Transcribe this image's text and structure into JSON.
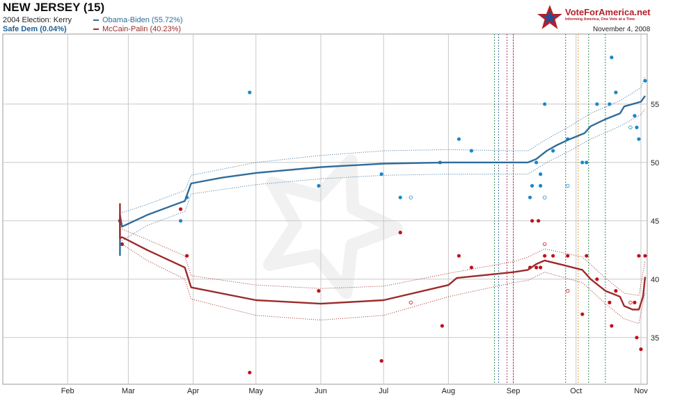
{
  "header": {
    "title": "NEW JERSEY (15)",
    "election_2004": "2004 Election: Kerry",
    "rating": "Safe Dem (0.04%)",
    "date": "November 4, 2008"
  },
  "logo": {
    "name": "VoteForAmerica.net",
    "tagline": "Informing America, One Vote at a Time"
  },
  "colors": {
    "obama": "#2f6c9b",
    "obama_points": "#1a88c9",
    "mccain": "#9c2a2a",
    "mccain_points": "#c0111b",
    "grid": "#c8c8c8"
  },
  "chart_data": {
    "type": "line",
    "x_axis": {
      "min": "2008-01-01",
      "max": "2008-11-04",
      "ticks": [
        "Feb",
        "Mar",
        "Apr",
        "May",
        "Jun",
        "Jul",
        "Aug",
        "Sep",
        "Oct",
        "Nov"
      ],
      "tick_dates": [
        "2008-02-01",
        "2008-03-01",
        "2008-04-01",
        "2008-05-01",
        "2008-06-01",
        "2008-07-01",
        "2008-08-01",
        "2008-09-01",
        "2008-10-01",
        "2008-11-01"
      ]
    },
    "y_axis": {
      "min": 31,
      "max": 61,
      "ticks": [
        35,
        40,
        45,
        50,
        55
      ],
      "position": "right"
    },
    "grid": true,
    "legend": "top-left",
    "series": [
      {
        "name": "Obama-Biden (55.72%)",
        "trend": [
          [
            "2008-02-26",
            42
          ],
          [
            "2008-02-26",
            45.5
          ],
          [
            "2008-02-27",
            44.5
          ],
          [
            "2008-03-10",
            45.5
          ],
          [
            "2008-03-28",
            46.7
          ],
          [
            "2008-03-31",
            48.2
          ],
          [
            "2008-04-15",
            48.7
          ],
          [
            "2008-05-01",
            49.1
          ],
          [
            "2008-06-01",
            49.6
          ],
          [
            "2008-07-01",
            49.9
          ],
          [
            "2008-08-01",
            50.0
          ],
          [
            "2008-08-15",
            50.0
          ],
          [
            "2008-09-01",
            50.0
          ],
          [
            "2008-09-08",
            50.0
          ],
          [
            "2008-09-12",
            50.3
          ],
          [
            "2008-09-17",
            51.0
          ],
          [
            "2008-09-22",
            51.5
          ],
          [
            "2008-09-28",
            52.0
          ],
          [
            "2008-10-05",
            52.5
          ],
          [
            "2008-10-08",
            53.1
          ],
          [
            "2008-10-15",
            53.7
          ],
          [
            "2008-10-22",
            54.2
          ],
          [
            "2008-10-24",
            54.8
          ],
          [
            "2008-10-28",
            55.0
          ],
          [
            "2008-11-01",
            55.2
          ],
          [
            "2008-11-03",
            55.7
          ]
        ],
        "band_upper": [
          [
            "2008-02-27",
            45.7
          ],
          [
            "2008-03-10",
            46.4
          ],
          [
            "2008-03-28",
            47.6
          ],
          [
            "2008-03-31",
            48.9
          ],
          [
            "2008-05-01",
            50.0
          ],
          [
            "2008-06-01",
            50.6
          ],
          [
            "2008-07-01",
            51.0
          ],
          [
            "2008-08-01",
            51.1
          ],
          [
            "2008-09-01",
            51.0
          ],
          [
            "2008-09-08",
            51.0
          ],
          [
            "2008-09-17",
            52.0
          ],
          [
            "2008-09-28",
            53.1
          ],
          [
            "2008-10-08",
            54.2
          ],
          [
            "2008-10-22",
            55.3
          ],
          [
            "2008-11-01",
            56.4
          ],
          [
            "2008-11-03",
            57.4
          ]
        ],
        "band_lower": [
          [
            "2008-02-27",
            43.3
          ],
          [
            "2008-03-10",
            44.6
          ],
          [
            "2008-03-28",
            45.8
          ],
          [
            "2008-03-31",
            47.3
          ],
          [
            "2008-05-01",
            48.1
          ],
          [
            "2008-06-01",
            48.6
          ],
          [
            "2008-07-01",
            48.9
          ],
          [
            "2008-08-01",
            49.0
          ],
          [
            "2008-09-01",
            49.0
          ],
          [
            "2008-09-08",
            49.0
          ],
          [
            "2008-09-17",
            50.0
          ],
          [
            "2008-09-28",
            51.0
          ],
          [
            "2008-10-08",
            52.0
          ],
          [
            "2008-10-22",
            53.1
          ],
          [
            "2008-11-01",
            54.1
          ],
          [
            "2008-11-03",
            54.6
          ]
        ],
        "polls": [
          [
            "2008-02-27",
            43
          ],
          [
            "2008-03-26",
            45
          ],
          [
            "2008-03-29",
            47
          ],
          [
            "2008-04-28",
            56
          ],
          [
            "2008-05-31",
            48
          ],
          [
            "2008-06-30",
            49
          ],
          [
            "2008-07-09",
            47
          ],
          [
            "2008-07-28",
            50
          ],
          [
            "2008-08-06",
            52
          ],
          [
            "2008-08-12",
            51
          ],
          [
            "2008-09-09",
            47
          ],
          [
            "2008-09-10",
            48
          ],
          [
            "2008-09-12",
            50
          ],
          [
            "2008-09-14",
            48
          ],
          [
            "2008-09-14",
            49
          ],
          [
            "2008-09-16",
            55
          ],
          [
            "2008-09-20",
            51
          ],
          [
            "2008-09-27",
            52
          ],
          [
            "2008-10-04",
            50
          ],
          [
            "2008-10-06",
            50
          ],
          [
            "2008-10-11",
            55
          ],
          [
            "2008-10-17",
            55
          ],
          [
            "2008-10-18",
            59
          ],
          [
            "2008-10-20",
            56
          ],
          [
            "2008-10-29",
            54
          ],
          [
            "2008-10-30",
            53
          ],
          [
            "2008-10-31",
            52
          ],
          [
            "2008-11-03",
            57
          ]
        ],
        "polls_open": [
          [
            "2008-07-14",
            47
          ],
          [
            "2008-09-16",
            47
          ],
          [
            "2008-09-27",
            48
          ],
          [
            "2008-10-27",
            53
          ]
        ]
      },
      {
        "name": "McCain-Palin (40.23%)",
        "trend": [
          [
            "2008-02-26",
            46.5
          ],
          [
            "2008-02-26",
            43.5
          ],
          [
            "2008-02-27",
            43.6
          ],
          [
            "2008-03-10",
            42.5
          ],
          [
            "2008-03-28",
            41.0
          ],
          [
            "2008-03-31",
            39.3
          ],
          [
            "2008-05-01",
            38.2
          ],
          [
            "2008-06-01",
            37.9
          ],
          [
            "2008-07-01",
            38.2
          ],
          [
            "2008-08-01",
            39.5
          ],
          [
            "2008-08-05",
            40.1
          ],
          [
            "2008-09-01",
            40.6
          ],
          [
            "2008-09-08",
            40.8
          ],
          [
            "2008-09-12",
            41.3
          ],
          [
            "2008-09-16",
            41.6
          ],
          [
            "2008-09-25",
            41.2
          ],
          [
            "2008-10-04",
            40.8
          ],
          [
            "2008-10-08",
            40.0
          ],
          [
            "2008-10-15",
            39.0
          ],
          [
            "2008-10-22",
            38.5
          ],
          [
            "2008-10-24",
            37.7
          ],
          [
            "2008-10-28",
            37.4
          ],
          [
            "2008-10-31",
            37.4
          ],
          [
            "2008-11-02",
            38.5
          ],
          [
            "2008-11-03",
            40.2
          ]
        ],
        "band_upper": [
          [
            "2008-02-27",
            44.3
          ],
          [
            "2008-03-10",
            43.4
          ],
          [
            "2008-03-28",
            42.0
          ],
          [
            "2008-03-31",
            40.3
          ],
          [
            "2008-05-01",
            39.5
          ],
          [
            "2008-06-01",
            39.2
          ],
          [
            "2008-07-01",
            39.4
          ],
          [
            "2008-08-01",
            40.5
          ],
          [
            "2008-09-01",
            41.5
          ],
          [
            "2008-09-08",
            41.9
          ],
          [
            "2008-09-16",
            42.6
          ],
          [
            "2008-10-04",
            41.9
          ],
          [
            "2008-10-15",
            40.1
          ],
          [
            "2008-10-24",
            38.8
          ],
          [
            "2008-10-31",
            38.6
          ],
          [
            "2008-11-03",
            41.6
          ]
        ],
        "band_lower": [
          [
            "2008-02-27",
            43.0
          ],
          [
            "2008-03-10",
            41.6
          ],
          [
            "2008-03-28",
            40.0
          ],
          [
            "2008-03-31",
            38.3
          ],
          [
            "2008-05-01",
            36.9
          ],
          [
            "2008-06-01",
            36.5
          ],
          [
            "2008-07-01",
            36.9
          ],
          [
            "2008-08-01",
            38.5
          ],
          [
            "2008-09-01",
            39.7
          ],
          [
            "2008-09-08",
            39.9
          ],
          [
            "2008-09-16",
            40.6
          ],
          [
            "2008-10-04",
            39.7
          ],
          [
            "2008-10-15",
            37.9
          ],
          [
            "2008-10-24",
            36.6
          ],
          [
            "2008-10-31",
            36.2
          ],
          [
            "2008-11-03",
            38.8
          ]
        ],
        "polls": [
          [
            "2008-02-26",
            45
          ],
          [
            "2008-02-27",
            43
          ],
          [
            "2008-03-26",
            46
          ],
          [
            "2008-03-29",
            42
          ],
          [
            "2008-04-28",
            32
          ],
          [
            "2008-05-31",
            39
          ],
          [
            "2008-06-30",
            33
          ],
          [
            "2008-07-09",
            44
          ],
          [
            "2008-07-29",
            36
          ],
          [
            "2008-08-06",
            42
          ],
          [
            "2008-08-12",
            41
          ],
          [
            "2008-09-09",
            41
          ],
          [
            "2008-09-10",
            45
          ],
          [
            "2008-09-12",
            41
          ],
          [
            "2008-09-13",
            45
          ],
          [
            "2008-09-14",
            41
          ],
          [
            "2008-09-16",
            42
          ],
          [
            "2008-09-20",
            42
          ],
          [
            "2008-09-27",
            42
          ],
          [
            "2008-10-04",
            37
          ],
          [
            "2008-10-06",
            42
          ],
          [
            "2008-10-11",
            40
          ],
          [
            "2008-10-17",
            38
          ],
          [
            "2008-10-18",
            36
          ],
          [
            "2008-10-20",
            39
          ],
          [
            "2008-10-29",
            38
          ],
          [
            "2008-10-30",
            35
          ],
          [
            "2008-10-31",
            42
          ],
          [
            "2008-11-01",
            34
          ],
          [
            "2008-11-03",
            42
          ]
        ],
        "polls_open": [
          [
            "2008-07-14",
            38
          ],
          [
            "2008-09-16",
            43
          ],
          [
            "2008-09-27",
            39
          ],
          [
            "2008-10-27",
            38
          ]
        ]
      }
    ],
    "event_lines": [
      {
        "date": "2008-08-23",
        "color": "#2e8b57"
      },
      {
        "date": "2008-08-25",
        "color": "#3a6fb0"
      },
      {
        "date": "2008-08-29",
        "color": "#a33a7a"
      },
      {
        "date": "2008-09-01",
        "color": "#b23030"
      },
      {
        "date": "2008-09-26",
        "color": "#2e8b57"
      },
      {
        "date": "2008-10-02",
        "color": "#e89a1e"
      },
      {
        "date": "2008-10-07",
        "color": "#2e8b57"
      },
      {
        "date": "2008-10-15",
        "color": "#2e8b57"
      }
    ]
  }
}
